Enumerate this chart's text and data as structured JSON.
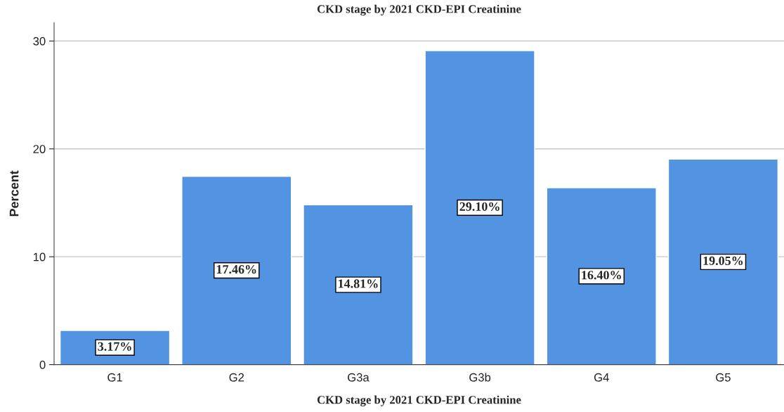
{
  "chart_data": {
    "type": "bar",
    "title": "CKD stage by 2021 CKD-EPI Creatinine",
    "xlabel": "CKD stage by 2021 CKD-EPI Creatinine",
    "ylabel": "Percent",
    "categories": [
      "G1",
      "G2",
      "G3a",
      "G3b",
      "G4",
      "G5"
    ],
    "values": [
      3.17,
      17.46,
      14.81,
      29.1,
      16.4,
      19.05
    ],
    "value_labels": [
      "3.17%",
      "17.46%",
      "14.81%",
      "29.10%",
      "16.40%",
      "19.05%"
    ],
    "color": "#5294e2",
    "ylim": [
      0,
      31.7
    ],
    "yticks": [
      0,
      10,
      20,
      30
    ],
    "grid": "y"
  }
}
